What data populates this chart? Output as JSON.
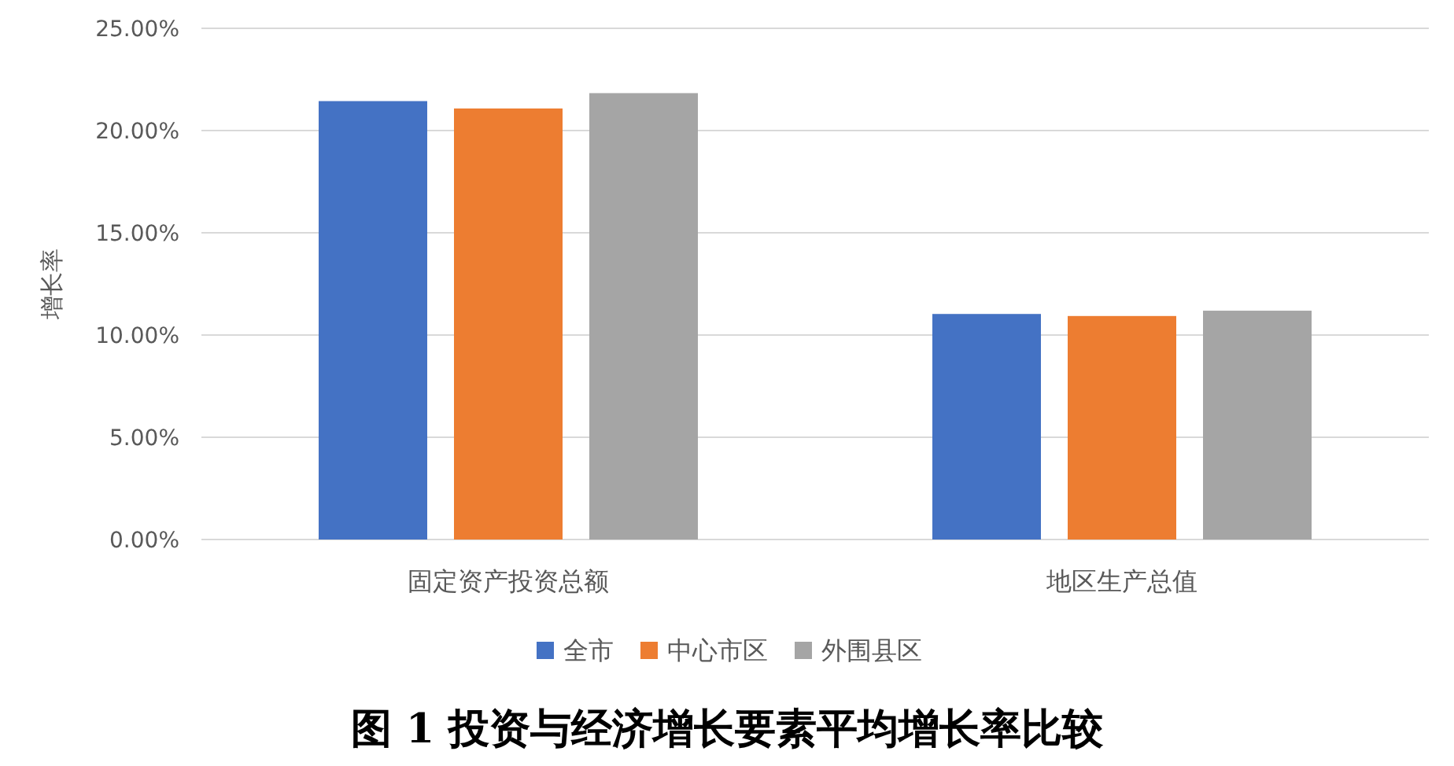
{
  "chart_data": {
    "type": "bar",
    "title": "图 1  投资与经济增长要素平均增长率比较",
    "ylabel": "增长率",
    "categories": [
      "固定资产投资总额",
      "地区生产总值"
    ],
    "series": [
      {
        "name": "全市",
        "color": "#4472c4",
        "values": [
          21.44,
          11.03
        ]
      },
      {
        "name": "中心市区",
        "color": "#ed7d31",
        "values": [
          21.08,
          10.93
        ]
      },
      {
        "name": "外围县区",
        "color": "#a5a5a5",
        "values": [
          21.83,
          11.19
        ]
      }
    ],
    "ylim": [
      0,
      25
    ],
    "yticks": [
      {
        "value": 0,
        "label": "0.00%"
      },
      {
        "value": 5,
        "label": "5.00%"
      },
      {
        "value": 10,
        "label": "10.00%"
      },
      {
        "value": 15,
        "label": "15.00%"
      },
      {
        "value": 20,
        "label": "20.00%"
      },
      {
        "value": 25,
        "label": "25.00%"
      }
    ],
    "grid": "y",
    "legend": "bottom"
  }
}
